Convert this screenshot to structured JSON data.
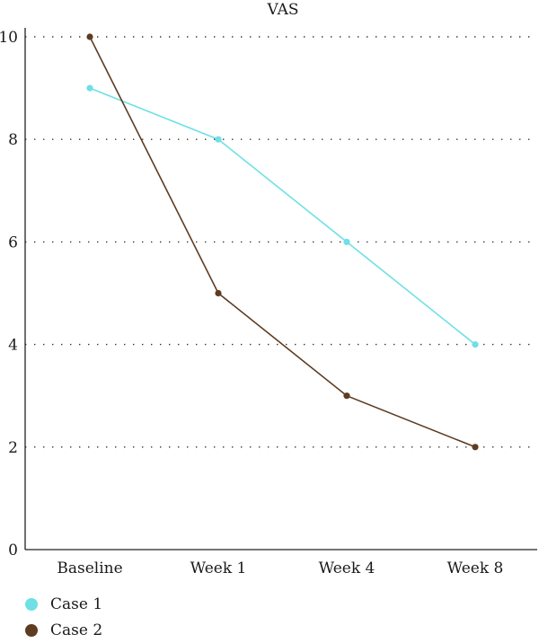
{
  "chart_data": {
    "type": "line",
    "title": "VAS",
    "categories": [
      "Baseline",
      "Week 1",
      "Week 4",
      "Week 8"
    ],
    "ylim": [
      0,
      10
    ],
    "yticks": [
      0,
      2,
      4,
      6,
      8,
      10
    ],
    "grid": "horizontal dotted",
    "legend_position": "bottom-left",
    "series": [
      {
        "name": "Case 1",
        "color": "#6ee0e6",
        "values": [
          9,
          8,
          6,
          4
        ]
      },
      {
        "name": "Case 2",
        "color": "#5e3c22",
        "values": [
          10,
          5,
          3,
          2
        ]
      }
    ]
  }
}
